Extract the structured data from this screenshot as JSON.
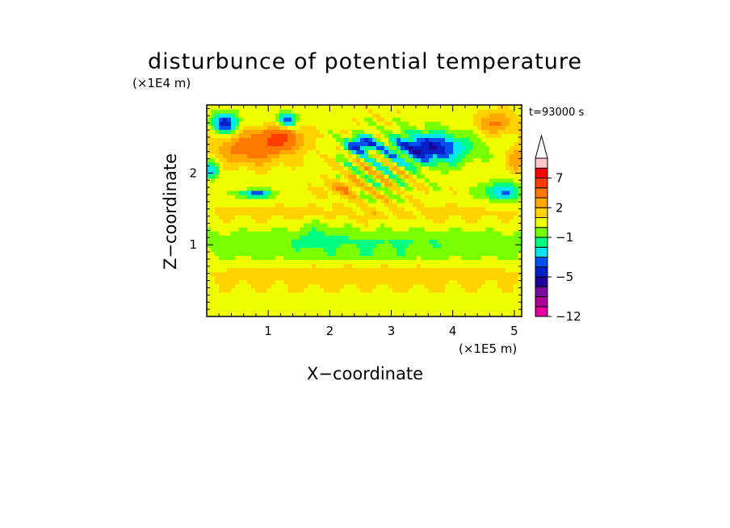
{
  "chart_data": {
    "type": "heatmap",
    "title": "disturbunce of potential temperature",
    "xlabel": "X−coordinate",
    "ylabel": "Z−coordinate",
    "x_unit": "(×1E5 m)",
    "y_unit": "(×1E4 m)",
    "time_label": "t=93000 s",
    "xlim": [
      0,
      5.12
    ],
    "ylim": [
      0,
      2.95
    ],
    "x_ticks": [
      1,
      2,
      3,
      4,
      5
    ],
    "y_ticks": [
      1,
      2
    ],
    "x_tick_labels": [
      "1",
      "2",
      "3",
      "4",
      "5"
    ],
    "y_tick_labels": [
      "1",
      "2"
    ],
    "colorbar": {
      "levels": [
        -12,
        -10,
        -8,
        -6,
        -5,
        -4,
        -3,
        -2,
        -1,
        0,
        1,
        2,
        3,
        5,
        7,
        9,
        11
      ],
      "colors": [
        "#e6009e",
        "#b0009a",
        "#7a0a9e",
        "#1e0096",
        "#0020c8",
        "#0050f0",
        "#00e6f0",
        "#00ff80",
        "#78ff00",
        "#f0ff00",
        "#ffd200",
        "#ffa800",
        "#ff7800",
        "#ff3c00",
        "#ff0000",
        "#ffc8c8"
      ],
      "labels": [
        "7",
        "2",
        "−1",
        "−5",
        "−12"
      ],
      "label_values": [
        7,
        2,
        -1,
        -5,
        -12
      ],
      "extend": "max"
    }
  }
}
